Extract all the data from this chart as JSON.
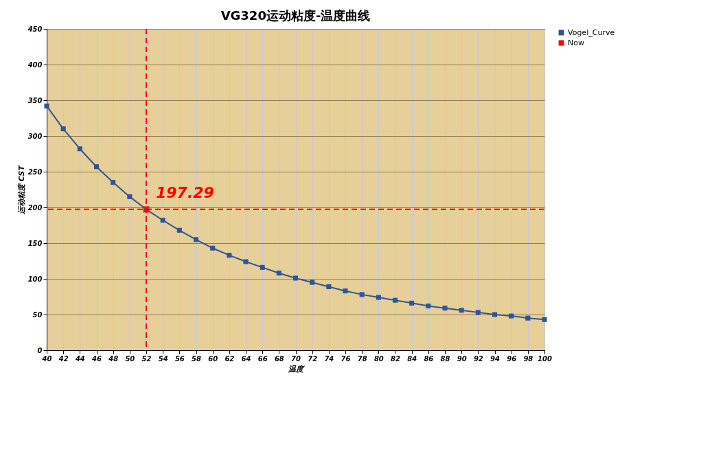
{
  "chart_data": {
    "type": "line",
    "title": "VG320运动粘度-温度曲线",
    "xlabel": "温度",
    "ylabel": "运动粘度 CST",
    "x": [
      40,
      42,
      44,
      46,
      48,
      50,
      52,
      54,
      56,
      58,
      60,
      62,
      64,
      66,
      68,
      70,
      72,
      74,
      76,
      78,
      80,
      82,
      84,
      86,
      88,
      90,
      92,
      94,
      96,
      98,
      100
    ],
    "series": [
      {
        "name": "Vogel_Curve",
        "color": "#2f5597",
        "type": "line",
        "marker": "square",
        "values": [
          342,
          310,
          282,
          257,
          235,
          215,
          197.29,
          182,
          168,
          155,
          143,
          133,
          124,
          116,
          108,
          101,
          95,
          89,
          83,
          78,
          74,
          70,
          66,
          62,
          59,
          56,
          53,
          50,
          48,
          45,
          43
        ]
      },
      {
        "name": "Now",
        "color": "#ff0000",
        "type": "scatter",
        "marker": "cross",
        "x": [
          52
        ],
        "values": [
          197.29
        ],
        "value_labels": [
          "197.29"
        ]
      }
    ],
    "xlim": [
      40,
      100
    ],
    "xticks": [
      40,
      42,
      44,
      46,
      48,
      50,
      52,
      54,
      56,
      58,
      60,
      62,
      64,
      66,
      68,
      70,
      72,
      74,
      76,
      78,
      80,
      82,
      84,
      86,
      88,
      90,
      92,
      94,
      96,
      98,
      100
    ],
    "ylim": [
      0,
      450
    ],
    "yticks": [
      0,
      50,
      100,
      150,
      200,
      250,
      300,
      350,
      400,
      450
    ],
    "grid": true,
    "legend": "right",
    "ref_lines": [
      {
        "axis": "x",
        "value": 52,
        "color": "#ff0000",
        "line_style": "dashed"
      },
      {
        "axis": "y",
        "value": 197.29,
        "color": "#ff0000",
        "line_style": "dashed"
      }
    ]
  }
}
